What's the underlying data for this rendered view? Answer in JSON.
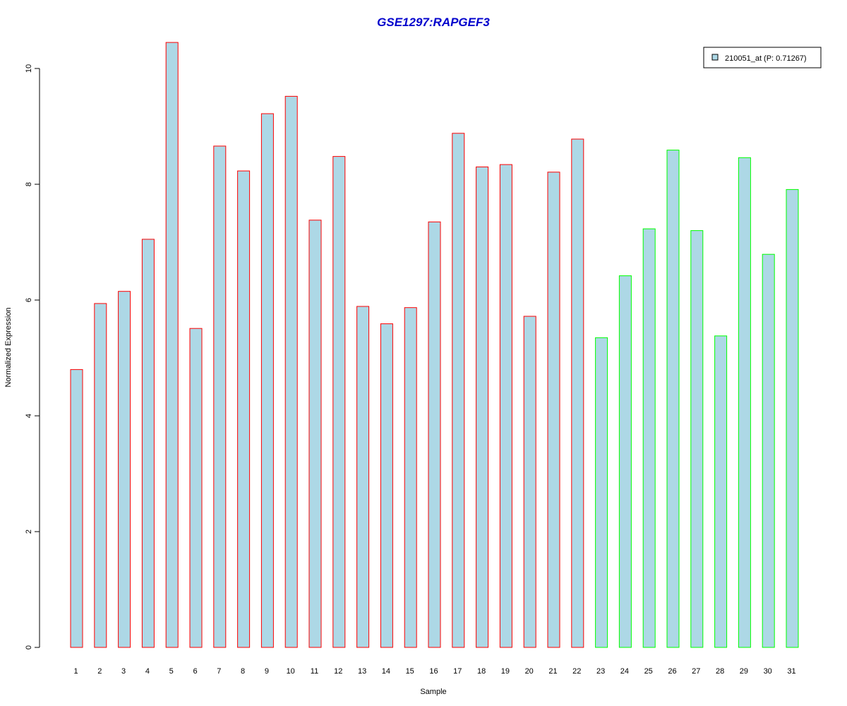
{
  "colors": {
    "title": "#0000CC",
    "bar_fill": "#ADD8E6",
    "group1_border": "#FF0000",
    "group2_border": "#00FF00",
    "axis": "#000000"
  },
  "chart_data": {
    "type": "bar",
    "title": "GSE1297:RAPGEF3",
    "xlabel": "Sample",
    "ylabel": "Normalized Expression",
    "ylim": [
      0,
      10.5
    ],
    "yticks": [
      0,
      2,
      4,
      6,
      8,
      10
    ],
    "grid": false,
    "legend_position": "top-right",
    "categories": [
      "1",
      "2",
      "3",
      "4",
      "5",
      "6",
      "7",
      "8",
      "9",
      "10",
      "11",
      "12",
      "13",
      "14",
      "15",
      "16",
      "17",
      "18",
      "19",
      "20",
      "21",
      "22",
      "23",
      "24",
      "25",
      "26",
      "27",
      "28",
      "29",
      "30",
      "31"
    ],
    "series": [
      {
        "name": "210051_at (P: 0.71267)",
        "values": [
          4.8,
          5.94,
          6.15,
          7.05,
          10.45,
          5.51,
          8.66,
          8.23,
          9.22,
          9.52,
          7.38,
          8.48,
          5.89,
          5.59,
          5.87,
          7.35,
          8.88,
          8.3,
          8.34,
          5.72,
          8.21,
          8.78,
          5.35,
          6.42,
          7.23,
          8.59,
          7.2,
          5.38,
          8.46,
          6.79,
          7.91
        ],
        "groups": [
          1,
          1,
          1,
          1,
          1,
          1,
          1,
          1,
          1,
          1,
          1,
          1,
          1,
          1,
          1,
          1,
          1,
          1,
          1,
          1,
          1,
          1,
          2,
          2,
          2,
          2,
          2,
          2,
          2,
          2,
          2
        ]
      }
    ]
  }
}
